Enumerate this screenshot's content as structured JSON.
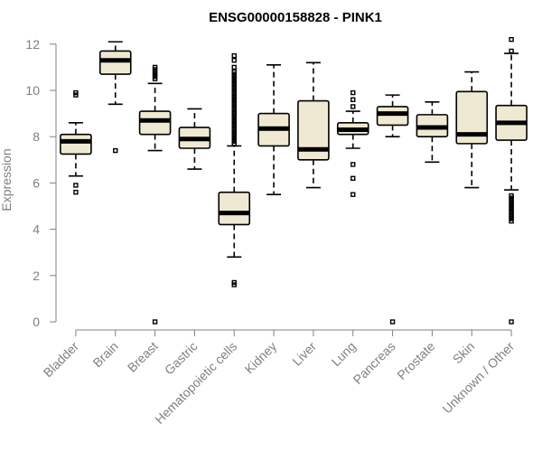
{
  "chart_data": {
    "type": "box",
    "title": "ENSG00000158828 - PINK1",
    "xlabel": "",
    "ylabel": "Expression",
    "ylim": [
      0,
      12
    ],
    "yticks": [
      0,
      2,
      4,
      6,
      8,
      10,
      12
    ],
    "grid": false,
    "legend": "none",
    "categories": [
      "Bladder",
      "Brain",
      "Breast",
      "Gastric",
      "Hematopoietic cells",
      "Kidney",
      "Liver",
      "Lung",
      "Pancreas",
      "Prostate",
      "Skin",
      "Unknown / Other"
    ],
    "boxes": [
      {
        "whisker_low": 6.3,
        "q1": 7.25,
        "median": 7.8,
        "q3": 8.1,
        "whisker_high": 8.6,
        "outliers": [
          5.6,
          5.9,
          9.8,
          9.9
        ]
      },
      {
        "whisker_low": 9.4,
        "q1": 10.7,
        "median": 11.3,
        "q3": 11.7,
        "whisker_high": 12.1,
        "outliers": [
          7.4
        ]
      },
      {
        "whisker_low": 7.4,
        "q1": 8.1,
        "median": 8.7,
        "q3": 9.1,
        "whisker_high": 10.3,
        "outliers": [
          0,
          10.5,
          10.6,
          10.7,
          10.8,
          10.9,
          11.0
        ]
      },
      {
        "whisker_low": 6.6,
        "q1": 7.5,
        "median": 7.9,
        "q3": 8.4,
        "whisker_high": 9.2,
        "outliers": []
      },
      {
        "whisker_low": 2.8,
        "q1": 4.2,
        "median": 4.7,
        "q3": 5.6,
        "whisker_high": 7.6,
        "outliers": [
          1.6,
          1.7,
          7.7,
          7.8,
          7.9,
          8.0,
          8.1,
          8.2,
          8.3,
          8.4,
          8.5,
          8.6,
          8.7,
          8.8,
          8.9,
          9.0,
          9.1,
          9.2,
          9.3,
          9.4,
          9.5,
          9.6,
          9.7,
          9.8,
          9.9,
          10.0,
          10.1,
          10.2,
          10.3,
          10.4,
          10.5,
          10.6,
          10.7,
          10.8,
          11.0,
          11.3,
          11.5
        ]
      },
      {
        "whisker_low": 5.5,
        "q1": 7.6,
        "median": 8.35,
        "q3": 9.0,
        "whisker_high": 11.1,
        "outliers": []
      },
      {
        "whisker_low": 5.8,
        "q1": 7.0,
        "median": 7.45,
        "q3": 9.55,
        "whisker_high": 11.2,
        "outliers": []
      },
      {
        "whisker_low": 7.5,
        "q1": 8.1,
        "median": 8.3,
        "q3": 8.6,
        "whisker_high": 9.1,
        "outliers": [
          5.5,
          6.2,
          6.8,
          9.3,
          9.6,
          9.9
        ]
      },
      {
        "whisker_low": 8.0,
        "q1": 8.5,
        "median": 9.0,
        "q3": 9.3,
        "whisker_high": 9.8,
        "outliers": [
          0
        ]
      },
      {
        "whisker_low": 6.9,
        "q1": 8.0,
        "median": 8.4,
        "q3": 8.95,
        "whisker_high": 9.5,
        "outliers": []
      },
      {
        "whisker_low": 5.8,
        "q1": 7.7,
        "median": 8.1,
        "q3": 9.95,
        "whisker_high": 10.8,
        "outliers": []
      },
      {
        "whisker_low": 5.7,
        "q1": 7.85,
        "median": 8.6,
        "q3": 9.35,
        "whisker_high": 11.6,
        "outliers": [
          0,
          4.35,
          4.45,
          4.55,
          4.65,
          4.75,
          4.85,
          4.95,
          5.05,
          5.15,
          5.25,
          5.35,
          5.45,
          11.7,
          12.2
        ]
      }
    ],
    "colors": {
      "box_fill": "#efe9d3",
      "box_stroke": "#000000",
      "median": "#000000",
      "axis": "#808080"
    }
  }
}
